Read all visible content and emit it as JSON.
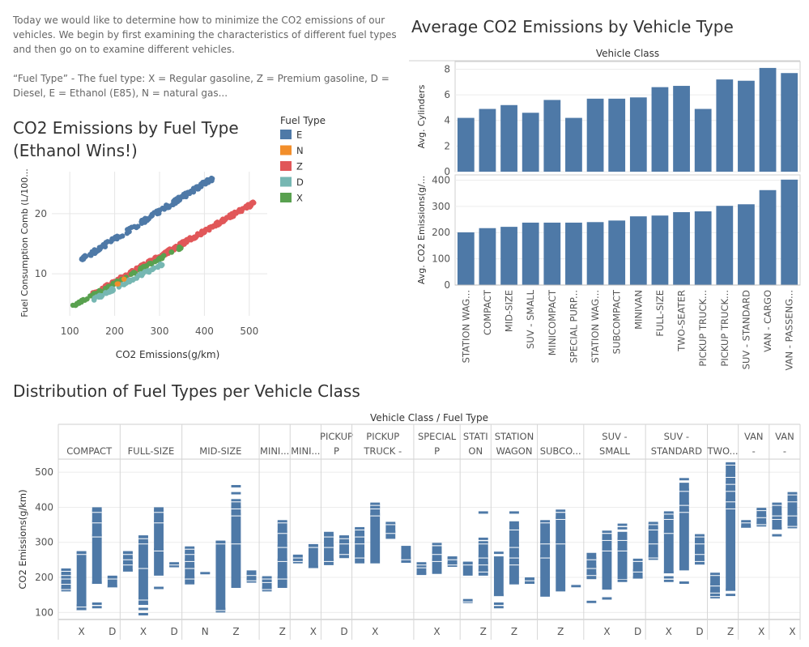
{
  "intro": {
    "line1": "Today we would like to determine how to minimize the CO2 emissions of our vehicles. We begin by first examining the characteristics of different fuel types and then go on to examine different vehicles.",
    "line2": "“Fuel Type” - The fuel type: X = Regular gasoline, Z = Premium gasoline, D = Diesel, E = Ethanol (E85), N = natural gas..."
  },
  "colors": {
    "E": "#4e79a7",
    "N": "#f28e2b",
    "Z": "#e15759",
    "D": "#76b7b2",
    "X": "#59a14f",
    "bar": "#4e79a7",
    "grid": "#e6e6e6"
  },
  "chart_data": [
    {
      "type": "scatter",
      "title": "CO2 Emissions by Fuel Type",
      "subtitle": "(Ethanol Wins!)",
      "xlabel": "CO2 Emissions(g/km)",
      "ylabel": "Fuel Consumption Comb (L/100...",
      "xticks": [
        100,
        200,
        300,
        400,
        500
      ],
      "yticks": [
        10,
        20
      ],
      "xlim": [
        60,
        540
      ],
      "ylim": [
        3,
        27
      ],
      "legend": {
        "title": "Fuel Type",
        "entries": [
          "E",
          "N",
          "Z",
          "D",
          "X"
        ],
        "placement": "right"
      },
      "series": [
        {
          "name": "E",
          "range": [
            [
              125,
              12.3
            ],
            [
              420,
              26
            ]
          ],
          "extra": [
            [
              130,
              12.1
            ],
            [
              360,
              23
            ]
          ]
        },
        {
          "name": "Z",
          "range": [
            [
              150,
              6.5
            ],
            [
              520,
              22.2
            ]
          ]
        },
        {
          "name": "X",
          "range": [
            [
              96,
              4.2
            ],
            [
              350,
              14.5
            ]
          ]
        },
        {
          "name": "D",
          "range": [
            [
              150,
              5.6
            ],
            [
              310,
              11.8
            ]
          ]
        },
        {
          "name": "N",
          "range": [
            [
              200,
              8
            ],
            [
              230,
              9.5
            ]
          ]
        }
      ]
    },
    {
      "type": "bar",
      "title": "Average CO2 Emissions by Vehicle Type",
      "header": "Vehicle Class",
      "categories": [
        "STATION WAG...",
        "COMPACT",
        "MID-SIZE",
        "SUV - SMALL",
        "MINICOMPACT",
        "SPECIAL PURP...",
        "STATION WAG...",
        "SUBCOMPACT",
        "MINIVAN",
        "FULL-SIZE",
        "TWO-SEATER",
        "PICKUP TRUCK...",
        "PICKUP TRUCK...",
        "SUV - STANDARD",
        "VAN - CARGO",
        "VAN - PASSENG..."
      ],
      "panels": [
        {
          "ylabel": "Avg. Cylinders",
          "ylim": [
            0,
            8.6
          ],
          "yticks": [
            0,
            2,
            4,
            6,
            8
          ],
          "values": [
            4.2,
            4.9,
            5.2,
            4.6,
            5.6,
            4.2,
            5.7,
            5.7,
            5.8,
            6.6,
            6.7,
            4.9,
            7.2,
            7.1,
            8.1,
            7.7
          ]
        },
        {
          "ylabel": "Avg. CO2 Emissions(g/...",
          "ylim": [
            0,
            420
          ],
          "yticks": [
            0,
            100,
            200,
            300,
            400
          ],
          "values": [
            201,
            217,
            222,
            238,
            238,
            238,
            240,
            246,
            262,
            265,
            278,
            281,
            302,
            308,
            362,
            402
          ]
        }
      ]
    },
    {
      "type": "bar",
      "title": "Distribution of Fuel Types per Vehicle Class",
      "header": "Vehicle Class  /  Fuel Type",
      "ylabel": "CO2 Emissions(g/km)",
      "ylim": [
        80,
        535
      ],
      "yticks": [
        100,
        200,
        300,
        400,
        500
      ],
      "classes": [
        {
          "label": "COMPACT",
          "cols": [
            {
              "fuel": "",
              "label": "",
              "min": 160,
              "max": 225,
              "ticks": [
                170,
                185,
                200,
                210,
                222
              ]
            },
            {
              "fuel": "X",
              "label": "X",
              "min": 105,
              "max": 275,
              "ticks": [
                110,
                120,
                270
              ]
            },
            {
              "fuel": "Z",
              "label": "",
              "min": 180,
              "max": 400,
              "ticks": [
                115,
                125,
                185,
                320,
                360,
                390
              ]
            },
            {
              "fuel": "D",
              "label": "D",
              "min": 170,
              "max": 205,
              "ticks": [
                175,
                200
              ]
            }
          ]
        },
        {
          "label": "FULL-SIZE",
          "cols": [
            {
              "fuel": "",
              "label": "",
              "min": 215,
              "max": 275,
              "ticks": [
                220,
                240,
                255,
                270
              ]
            },
            {
              "fuel": "X",
              "label": "X",
              "min": 120,
              "max": 320,
              "ticks": [
                95,
                110,
                125,
                140,
                230,
                300,
                315
              ]
            },
            {
              "fuel": "Z",
              "label": "",
              "min": 205,
              "max": 400,
              "ticks": [
                170,
                280,
                360,
                390
              ]
            },
            {
              "fuel": "D",
              "label": "D",
              "min": 230,
              "max": 240,
              "ticks": [
                232,
                240
              ]
            }
          ]
        },
        {
          "label": "MID-SIZE",
          "cols": [
            {
              "fuel": "",
              "label": "",
              "min": 180,
              "max": 285,
              "ticks": [
                200,
                230,
                250,
                270,
                285
              ]
            },
            {
              "fuel": "N",
              "label": "N",
              "min": 210,
              "max": 215,
              "ticks": [
                212
              ]
            },
            {
              "fuel": "",
              "label": "",
              "min": 100,
              "max": 305,
              "ticks": [
                110,
                300
              ]
            },
            {
              "fuel": "Z",
              "label": "Z",
              "min": 170,
              "max": 420,
              "ticks": [
                300,
                380,
                400,
                420,
                440,
                460
              ]
            },
            {
              "fuel": "",
              "label": "",
              "min": 185,
              "max": 220,
              "ticks": [
                195,
                210
              ]
            }
          ]
        },
        {
          "label": "MINI...",
          "cols": [
            {
              "fuel": "",
              "label": "",
              "min": 160,
              "max": 200,
              "ticks": [
                170,
                190,
                200
              ]
            },
            {
              "fuel": "Z",
              "label": "Z",
              "min": 170,
              "max": 360,
              "ticks": [
                200,
                250,
                290,
                330,
                360
              ]
            }
          ]
        },
        {
          "label": "MINI...",
          "cols": [
            {
              "fuel": "",
              "label": "",
              "min": 240,
              "max": 265,
              "ticks": [
                250,
                260
              ]
            },
            {
              "fuel": "X",
              "label": "X",
              "min": 225,
              "max": 295,
              "ticks": [
                230,
                290
              ]
            }
          ]
        },
        {
          "label": "PICKUP P TR...",
          "cols": [
            {
              "fuel": "",
              "label": "",
              "min": 235,
              "max": 330,
              "ticks": [
                250,
                290,
                320
              ]
            },
            {
              "fuel": "D",
              "label": "D",
              "min": 255,
              "max": 320,
              "ticks": [
                270,
                300,
                315
              ]
            }
          ]
        },
        {
          "label": "PICKUP TRUCK - ST...",
          "cols": [
            {
              "fuel": "",
              "label": "",
              "min": 240,
              "max": 340,
              "ticks": [
                260,
                300,
                320,
                340
              ]
            },
            {
              "fuel": "X",
              "label": "X",
              "min": 240,
              "max": 410,
              "ticks": [
                380,
                400,
                410
              ]
            },
            {
              "fuel": "",
              "label": "",
              "min": 310,
              "max": 355,
              "ticks": [
                330,
                355
              ]
            },
            {
              "fuel": "",
              "label": "",
              "min": 240,
              "max": 290,
              "ticks": [
                245,
                255
              ]
            }
          ]
        },
        {
          "label": "SPECIAL P URPOSE...",
          "cols": [
            {
              "fuel": "",
              "label": "",
              "min": 210,
              "max": 240,
              "ticks": [
                210,
                232,
                240
              ]
            },
            {
              "fuel": "X",
              "label": "X",
              "min": 210,
              "max": 290,
              "ticks": [
                250,
                270,
                295
              ]
            },
            {
              "fuel": "",
              "label": "",
              "min": 230,
              "max": 260,
              "ticks": [
                240,
                255
              ]
            }
          ]
        },
        {
          "label": "STATI ON ...",
          "cols": [
            {
              "fuel": "",
              "label": "",
              "min": 205,
              "max": 245,
              "ticks": [
                130,
                135,
                240
              ]
            },
            {
              "fuel": "Z",
              "label": "Z",
              "min": 205,
              "max": 300,
              "ticks": [
                220,
                240,
                260,
                300,
                310,
                385
              ]
            }
          ]
        },
        {
          "label": "STATION WAGON ...",
          "cols": [
            {
              "fuel": "",
              "label": "",
              "min": 145,
              "max": 260,
              "ticks": [
                115,
                125,
                150,
                270
              ]
            },
            {
              "fuel": "Z",
              "label": "Z",
              "min": 180,
              "max": 360,
              "ticks": [
                240,
                260,
                290,
                340,
                385
              ]
            },
            {
              "fuel": "",
              "label": "",
              "min": 180,
              "max": 200,
              "ticks": [
                185,
                195
              ]
            }
          ]
        },
        {
          "label": "SUBCO...",
          "cols": [
            {
              "fuel": "",
              "label": "",
              "min": 145,
              "max": 360,
              "ticks": [
                260,
                300,
                360
              ]
            },
            {
              "fuel": "Z",
              "label": "Z",
              "min": 160,
              "max": 385,
              "ticks": [
                300,
                370,
                390
              ]
            },
            {
              "fuel": "",
              "label": "",
              "min": 175,
              "max": 175,
              "ticks": [
                175
              ]
            }
          ]
        },
        {
          "label": "SUV - SMALL",
          "cols": [
            {
              "fuel": "",
              "label": "",
              "min": 195,
              "max": 270,
              "ticks": [
                130,
                210,
                230,
                255
              ]
            },
            {
              "fuel": "X",
              "label": "X",
              "min": 165,
              "max": 325,
              "ticks": [
                140,
                280,
                310,
                330
              ]
            },
            {
              "fuel": "",
              "label": "",
              "min": 195,
              "max": 330,
              "ticks": [
                190,
                280,
                310,
                340,
                350
              ]
            },
            {
              "fuel": "D",
              "label": "D",
              "min": 195,
              "max": 245,
              "ticks": [
                200,
                220,
                250
              ]
            }
          ]
        },
        {
          "label": "SUV - STANDARD",
          "cols": [
            {
              "fuel": "",
              "label": "",
              "min": 250,
              "max": 355,
              "ticks": [
                260,
                300,
                340,
                355
              ]
            },
            {
              "fuel": "X",
              "label": "X",
              "min": 210,
              "max": 385,
              "ticks": [
                190,
                200,
                215,
                330,
                370,
                385
              ]
            },
            {
              "fuel": "",
              "label": "",
              "min": 220,
              "max": 470,
              "ticks": [
                185,
                390,
                410,
                450,
                480
              ]
            },
            {
              "fuel": "D",
              "label": "D",
              "min": 235,
              "max": 320,
              "ticks": [
                240,
                250,
                270,
                300,
                320
              ]
            }
          ]
        },
        {
          "label": "TWO...",
          "cols": [
            {
              "fuel": "",
              "label": "",
              "min": 140,
              "max": 210,
              "ticks": [
                150,
                160,
                180,
                210
              ]
            },
            {
              "fuel": "Z",
              "label": "Z",
              "min": 160,
              "max": 525,
              "ticks": [
                150,
                165,
                400,
                420,
                450,
                470,
                490,
                525
              ]
            }
          ]
        },
        {
          "label": "VAN - CAR...",
          "cols": [
            {
              "fuel": "",
              "label": "",
              "min": 340,
              "max": 360,
              "ticks": [
                345,
                360
              ]
            },
            {
              "fuel": "X",
              "label": "X",
              "min": 345,
              "max": 395,
              "ticks": [
                355,
                375,
                395
              ]
            }
          ]
        },
        {
          "label": "VAN - PASS...",
          "cols": [
            {
              "fuel": "",
              "label": "",
              "min": 335,
              "max": 410,
              "ticks": [
                320,
                340,
                370,
                380,
                410
              ]
            },
            {
              "fuel": "X",
              "label": "X",
              "min": 340,
              "max": 440,
              "ticks": [
                350,
                380,
                420,
                440
              ]
            }
          ]
        }
      ]
    }
  ]
}
